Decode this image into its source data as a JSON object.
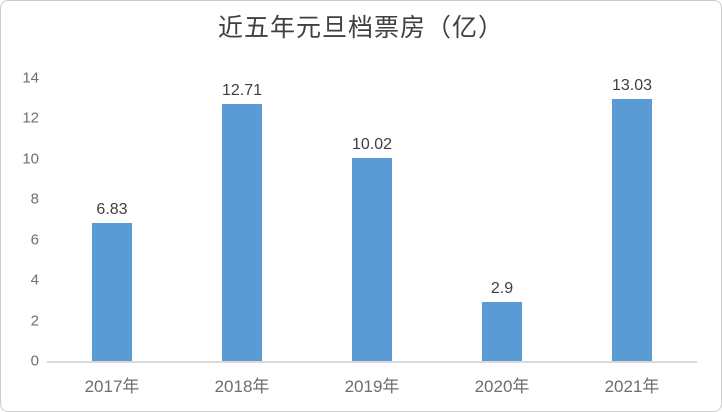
{
  "chart_data": {
    "type": "bar",
    "title": "近五年元旦档票房（亿）",
    "categories": [
      "2017年",
      "2018年",
      "2019年",
      "2020年",
      "2021年"
    ],
    "values": [
      6.83,
      12.71,
      10.02,
      2.9,
      13.03
    ],
    "value_labels": [
      "6.83",
      "12.71",
      "10.02",
      "2.9",
      "13.03"
    ],
    "yticks": [
      "0",
      "2",
      "4",
      "6",
      "8",
      "10",
      "12",
      "14"
    ],
    "ylim": [
      0,
      14
    ],
    "xlabel": "",
    "ylabel": "",
    "grid": false,
    "legend": "none",
    "colors": {
      "bar": "#5B9BD5",
      "axis_line": "#D9D9D9",
      "title_text": "#404040",
      "value_label_text": "#3F3F3F",
      "tick_label_text": "#6E6E6E"
    }
  }
}
